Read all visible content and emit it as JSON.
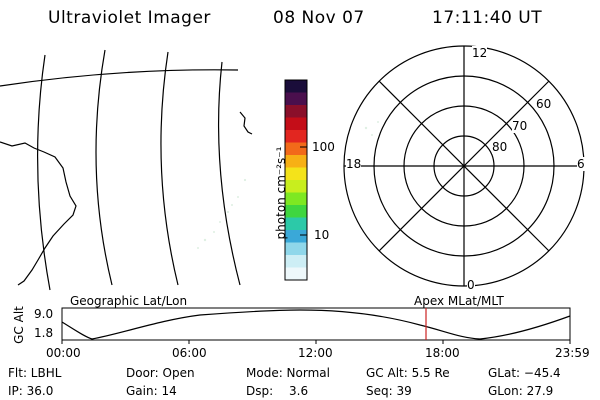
{
  "header": {
    "instrument": "Ultraviolet Imager",
    "date": "08 Nov 07",
    "time": "17:11:40 UT"
  },
  "color_scale": {
    "unit_label": "photon cm⁻²s⁻¹",
    "tick_labels": [
      "100",
      "10"
    ],
    "colors": [
      "#1a0d3a",
      "#4a0f4d",
      "#8a0f2a",
      "#c40d18",
      "#e22620",
      "#f26a1a",
      "#f7b015",
      "#f4e31a",
      "#c8ee1e",
      "#7ee822",
      "#3fd63f",
      "#2cc9a8",
      "#3aa8d8",
      "#8fd7ea",
      "#cdeef5",
      "#eef8fb"
    ]
  },
  "polar_plot": {
    "mlt_labels": {
      "top": "12",
      "right": "6",
      "bottom": "0",
      "left": "18"
    },
    "lat_labels": [
      "60",
      "70",
      "80"
    ]
  },
  "timeline": {
    "left_title": "Geographic Lat/Lon",
    "right_title": "Apex MLat/MLT",
    "y_axis_label": "GC Alt",
    "y_ticks": [
      "9.0",
      "1.8"
    ],
    "time_ticks": [
      "00:00",
      "06:00",
      "12:00",
      "18:00",
      "23:59"
    ],
    "current_time_color": "#cc2222"
  },
  "status": {
    "filter": "Flt: LBHL",
    "ip": "IP: 36.0",
    "door": "Door: Open",
    "gain": "Gain: 14",
    "mode": "Mode: Normal",
    "dsp_label": "Dsp:",
    "dsp_value": "3.6",
    "gc_alt": "GC Alt: 5.5 Re",
    "seq": "Seq: 39",
    "glat": "GLat: −45.4",
    "glon": "GLon: 27.9"
  }
}
